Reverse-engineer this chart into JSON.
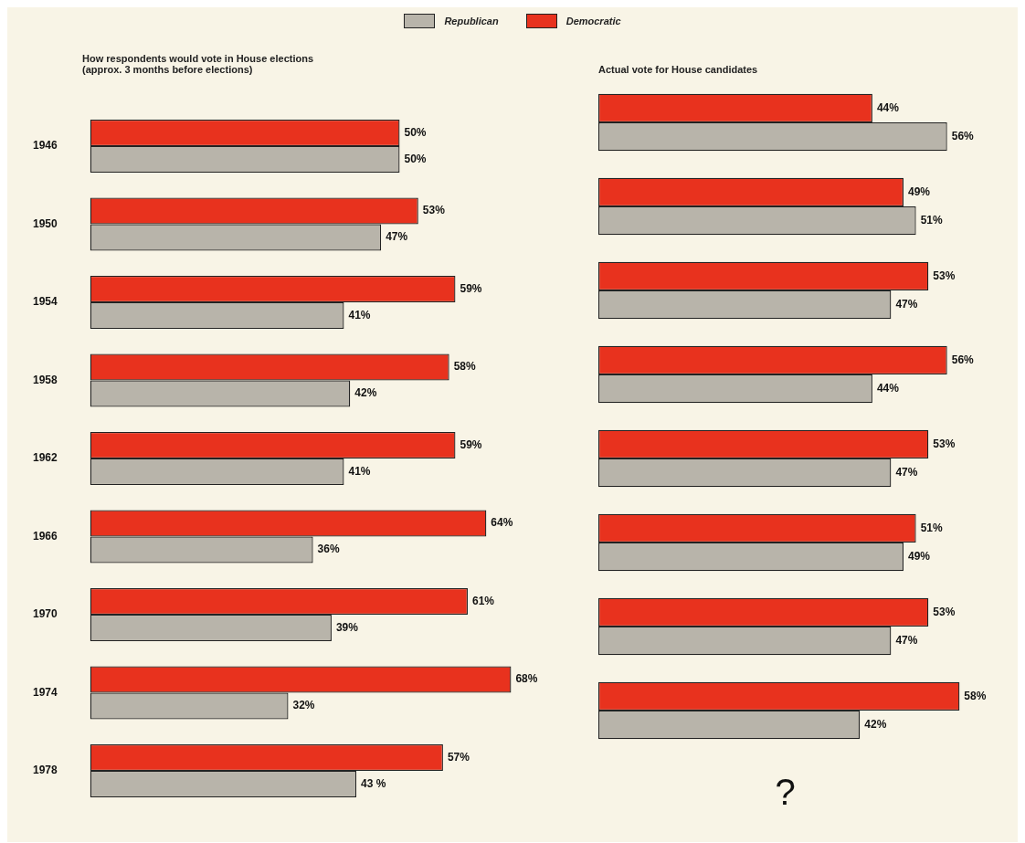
{
  "chart_data": [
    {
      "type": "bar",
      "orientation": "horizontal",
      "title": "How respondents would vote in House elections\n(approx. 3 months before elections)",
      "categories": [
        "1946",
        "1950",
        "1954",
        "1958",
        "1962",
        "1966",
        "1970",
        "1974",
        "1978"
      ],
      "tick_labels": "y",
      "legend": "top",
      "series": [
        {
          "name": "Democratic",
          "color": "#e8321e",
          "values": [
            50,
            53,
            59,
            58,
            59,
            64,
            61,
            68,
            57
          ],
          "value_labels": [
            "50%",
            "53%",
            "59%",
            "58%",
            "59%",
            "64%",
            "61%",
            "68%",
            "57%"
          ]
        },
        {
          "name": "Republican",
          "color": "#b8b4aa",
          "values": [
            50,
            47,
            41,
            42,
            41,
            36,
            39,
            32,
            43
          ],
          "value_labels": [
            "50%",
            "47%",
            "41%",
            "42%",
            "41%",
            "36%",
            "39%",
            "32%",
            "43 %"
          ]
        }
      ]
    },
    {
      "type": "bar",
      "orientation": "horizontal",
      "title": "Actual vote for House candidates",
      "categories": [
        "1946",
        "1950",
        "1954",
        "1958",
        "1962",
        "1966",
        "1970",
        "1974",
        "1978"
      ],
      "tick_labels": false,
      "annotations": [
        "?"
      ],
      "series": [
        {
          "color": "#e8321e",
          "values": [
            44,
            49,
            53,
            56,
            53,
            51,
            53,
            58,
            null
          ],
          "value_labels": [
            "44%",
            "49%",
            "53%",
            "56%",
            "53%",
            "51%",
            "53%",
            "58%",
            null
          ]
        },
        {
          "color": "#b8b4aa",
          "values": [
            56,
            51,
            47,
            44,
            47,
            49,
            47,
            42,
            null
          ],
          "value_labels": [
            "56%",
            "51%",
            "47%",
            "44%",
            "47%",
            "49%",
            "47%",
            "42%",
            null
          ]
        }
      ]
    }
  ]
}
